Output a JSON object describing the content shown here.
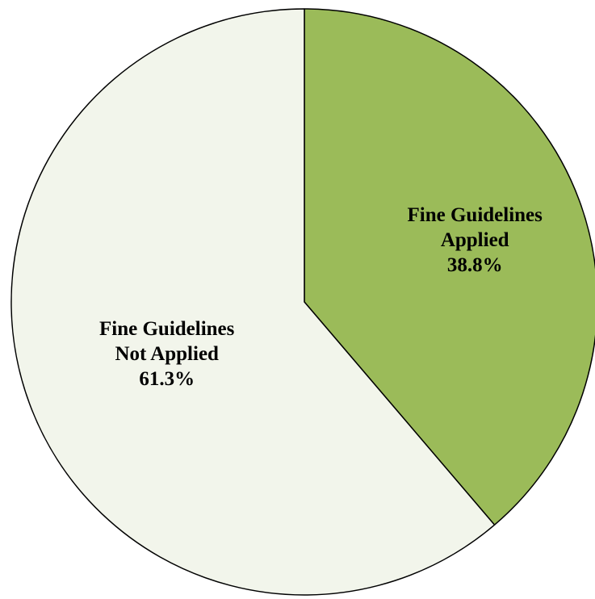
{
  "chart_data": {
    "type": "pie",
    "title": "",
    "slices": [
      {
        "label": "Fine Guidelines Applied",
        "label_lines": [
          "Fine Guidelines",
          "Applied"
        ],
        "value": 38.8,
        "value_label": "38.8%",
        "color": "#9BBB59"
      },
      {
        "label": "Fine Guidelines Not Applied",
        "label_lines": [
          "Fine Guidelines",
          "Not Applied"
        ],
        "value": 61.3,
        "value_label": "61.3%",
        "color": "#F2F5EB"
      }
    ],
    "start_angle_deg": 0,
    "direction": "clockwise",
    "legend": "none"
  }
}
